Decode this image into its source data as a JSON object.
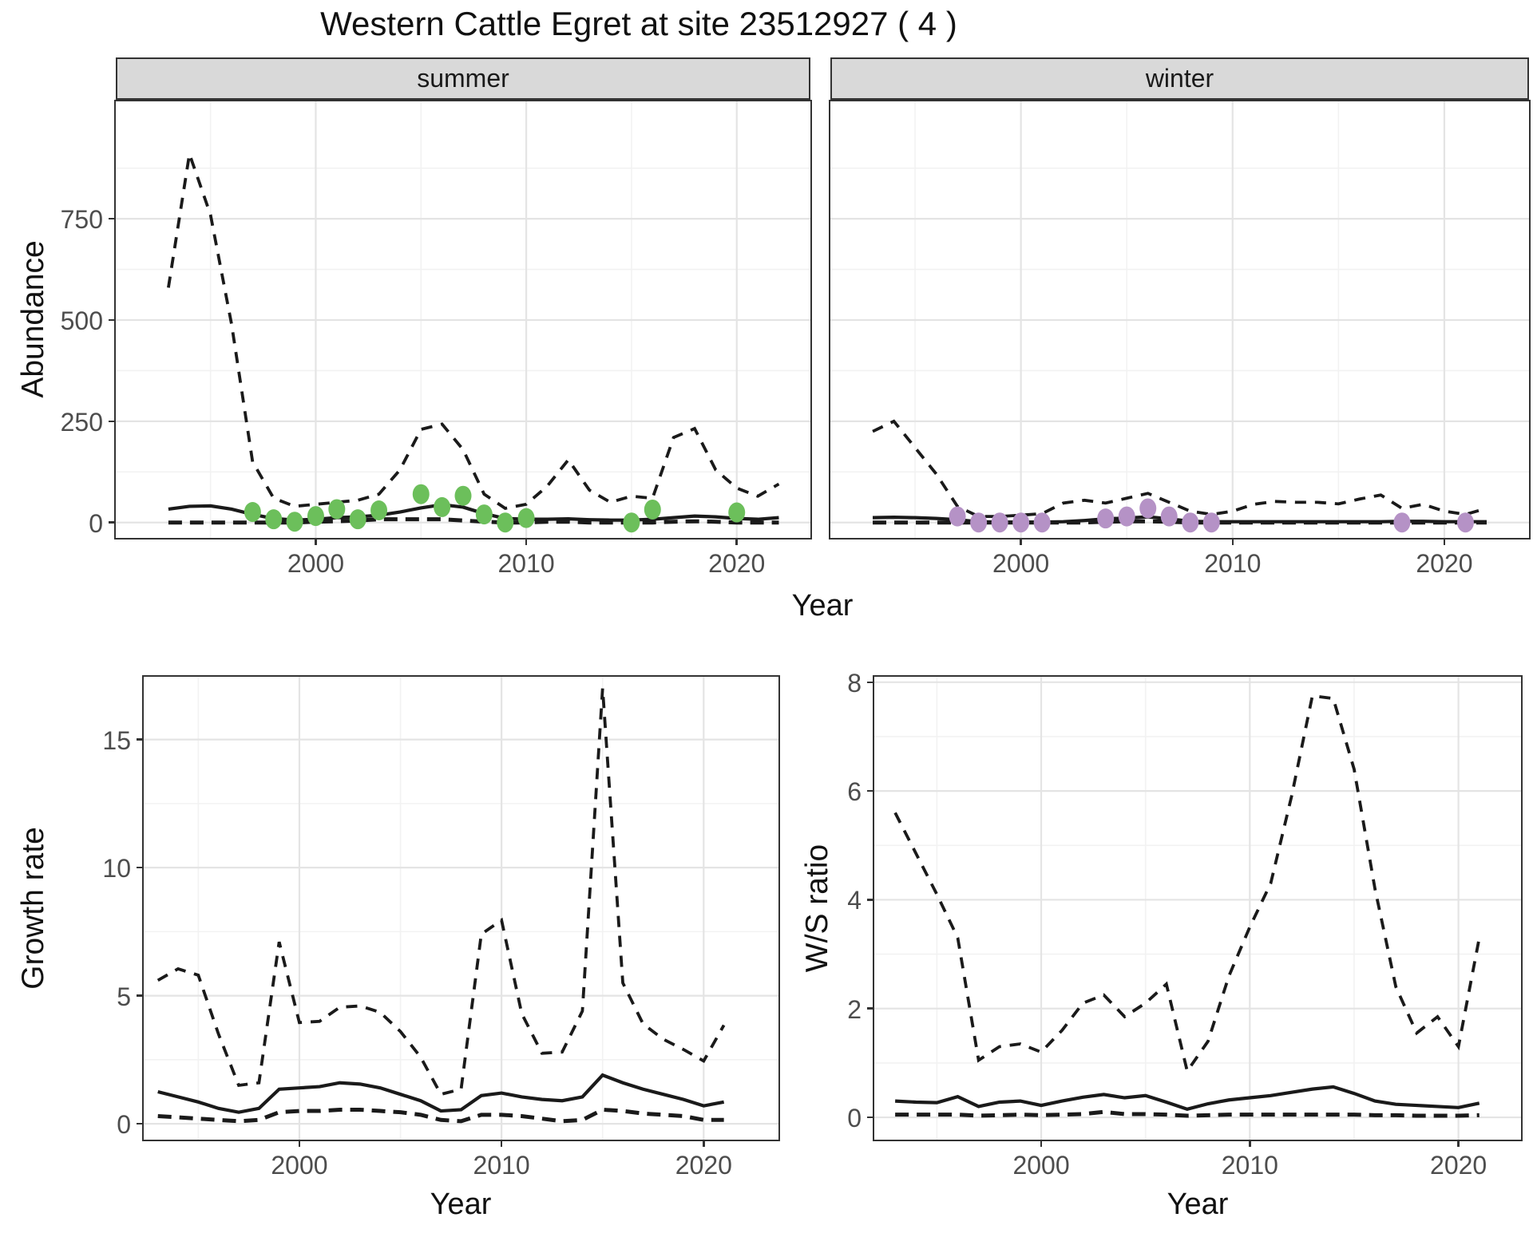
{
  "title": "Western Cattle Egret at site 23512927 ( 4 )",
  "facets": {
    "summer": "summer",
    "winter": "winter"
  },
  "axis_titles": {
    "abundance": "Abundance",
    "year_top": "Year",
    "year_growth": "Year",
    "year_ws": "Year",
    "growth_rate": "Growth rate",
    "ws_ratio": "W/S ratio"
  },
  "colors": {
    "line": "#1a1a1a",
    "summer_points": "#6cbf5b",
    "winter_points": "#b592c6",
    "strip_bg": "#d9d9d9",
    "grid_major": "#e4e4e4",
    "grid_minor": "#f2f2f2",
    "axis_text": "#4d4d4d",
    "panel_border": "#333333"
  },
  "chart_data": [
    {
      "type": "line",
      "id": "abundance-summer",
      "panel_id": "panel-abundance-summer",
      "facet": "summer",
      "xlabel": "Year",
      "ylabel": "Abundance",
      "xlim": [
        1990.5,
        2023.5
      ],
      "ylim": [
        -38,
        1040
      ],
      "xticks": [
        2000,
        2010,
        2020
      ],
      "xminor": [
        1995,
        2005,
        2015
      ],
      "yticks": [
        0,
        250,
        500,
        750
      ],
      "yminor": [
        125,
        375,
        625,
        875
      ],
      "show_y_labels": true,
      "x": [
        1993,
        1994,
        1995,
        1996,
        1997,
        1998,
        1999,
        2000,
        2001,
        2002,
        2003,
        2004,
        2005,
        2006,
        2007,
        2008,
        2009,
        2010,
        2011,
        2012,
        2013,
        2014,
        2015,
        2016,
        2017,
        2018,
        2019,
        2020,
        2021,
        2022
      ],
      "series": [
        {
          "name": "upper-quantile",
          "style": "dashed",
          "values": [
            580,
            910,
            760,
            490,
            150,
            60,
            40,
            45,
            50,
            55,
            70,
            130,
            230,
            243,
            180,
            70,
            35,
            45,
            90,
            155,
            80,
            50,
            65,
            60,
            210,
            232,
            130,
            85,
            65,
            95
          ]
        },
        {
          "name": "median",
          "style": "solid",
          "values": [
            33,
            40,
            41,
            33,
            20,
            10,
            6,
            8,
            12,
            14,
            18,
            26,
            36,
            44,
            38,
            22,
            10,
            8,
            8,
            9,
            7,
            6,
            6,
            8,
            12,
            16,
            14,
            10,
            8,
            12
          ]
        },
        {
          "name": "lower-quantile",
          "style": "dashed-bold",
          "values": [
            0,
            0,
            0,
            0,
            0,
            0,
            0,
            2,
            3,
            5,
            8,
            8,
            8,
            8,
            5,
            2,
            0,
            0,
            2,
            2,
            0,
            0,
            0,
            0,
            2,
            3,
            2,
            0,
            0,
            0
          ]
        }
      ],
      "points": {
        "name": "summer-observations",
        "color_key": "summer_points",
        "x": [
          1997,
          1998,
          1999,
          2000,
          2001,
          2002,
          2003,
          2005,
          2006,
          2007,
          2008,
          2009,
          2010,
          2015,
          2016,
          2020
        ],
        "y": [
          26,
          8,
          2,
          16,
          33,
          8,
          30,
          70,
          38,
          66,
          20,
          0,
          11,
          0,
          32,
          25
        ]
      }
    },
    {
      "type": "line",
      "id": "abundance-winter",
      "panel_id": "panel-abundance-winter",
      "facet": "winter",
      "xlabel": "Year",
      "ylabel": "Abundance",
      "xlim": [
        1991,
        2024
      ],
      "ylim": [
        -38,
        1040
      ],
      "xticks": [
        2000,
        2010,
        2020
      ],
      "xminor": [
        1995,
        2005,
        2015
      ],
      "yticks": [
        0,
        250,
        500,
        750
      ],
      "yminor": [
        125,
        375,
        625,
        875
      ],
      "show_y_labels": false,
      "x": [
        1993,
        1994,
        1995,
        1996,
        1997,
        1998,
        1999,
        2000,
        2001,
        2002,
        2003,
        2004,
        2005,
        2006,
        2007,
        2008,
        2009,
        2010,
        2011,
        2012,
        2013,
        2014,
        2015,
        2016,
        2017,
        2018,
        2019,
        2020,
        2021,
        2022
      ],
      "series": [
        {
          "name": "upper-quantile",
          "style": "dashed",
          "values": [
            225,
            250,
            185,
            120,
            40,
            15,
            15,
            18,
            22,
            48,
            55,
            48,
            60,
            72,
            50,
            28,
            20,
            28,
            45,
            52,
            50,
            50,
            46,
            58,
            68,
            35,
            45,
            28,
            20,
            35
          ]
        },
        {
          "name": "median",
          "style": "solid",
          "values": [
            12,
            13,
            12,
            10,
            7,
            2,
            1,
            1,
            1,
            2,
            5,
            9,
            11,
            14,
            9,
            3,
            2,
            2,
            2,
            2,
            2,
            2,
            2,
            2,
            2,
            3,
            3,
            2,
            2,
            2
          ]
        },
        {
          "name": "lower-quantile",
          "style": "dashed-bold",
          "values": [
            0,
            0,
            0,
            0,
            0,
            0,
            0,
            0,
            0,
            0,
            0,
            2,
            3,
            3,
            2,
            0,
            0,
            0,
            0,
            0,
            0,
            0,
            0,
            0,
            0,
            0,
            0,
            0,
            0,
            0
          ]
        }
      ],
      "points": {
        "name": "winter-observations",
        "color_key": "winter_points",
        "x": [
          1997,
          1998,
          1999,
          2000,
          2001,
          2004,
          2005,
          2006,
          2007,
          2008,
          2009,
          2018,
          2021
        ],
        "y": [
          15,
          0,
          0,
          0,
          0,
          10,
          15,
          35,
          15,
          0,
          0,
          0,
          0
        ]
      }
    },
    {
      "type": "line",
      "id": "growth-rate",
      "panel_id": "panel-growth-rate",
      "xlabel": "Year",
      "ylabel": "Growth rate",
      "xlim": [
        1992.3,
        2023.7
      ],
      "ylim": [
        -0.62,
        17.45
      ],
      "xticks": [
        2000,
        2010,
        2020
      ],
      "xminor": [
        1995,
        2005,
        2015
      ],
      "yticks": [
        0,
        5,
        10,
        15
      ],
      "yminor": [
        2.5,
        7.5,
        12.5
      ],
      "show_y_labels": true,
      "x": [
        1993,
        1994,
        1995,
        1996,
        1997,
        1998,
        1999,
        2000,
        2001,
        2002,
        2003,
        2004,
        2005,
        2006,
        2007,
        2008,
        2009,
        2010,
        2011,
        2012,
        2013,
        2014,
        2015,
        2016,
        2017,
        2018,
        2019,
        2020,
        2021
      ],
      "series": [
        {
          "name": "upper-quantile",
          "style": "dashed",
          "values": [
            5.6,
            6.05,
            5.8,
            3.5,
            1.5,
            1.6,
            7.1,
            3.95,
            4.0,
            4.55,
            4.6,
            4.35,
            3.6,
            2.6,
            1.15,
            1.35,
            7.4,
            7.95,
            4.3,
            2.75,
            2.8,
            4.4,
            17.0,
            5.5,
            3.9,
            3.3,
            2.9,
            2.45,
            3.85
          ]
        },
        {
          "name": "median",
          "style": "solid",
          "values": [
            1.25,
            1.05,
            0.85,
            0.6,
            0.45,
            0.6,
            1.35,
            1.4,
            1.45,
            1.6,
            1.55,
            1.4,
            1.15,
            0.9,
            0.5,
            0.55,
            1.1,
            1.2,
            1.05,
            0.95,
            0.9,
            1.05,
            1.9,
            1.6,
            1.35,
            1.15,
            0.95,
            0.7,
            0.85
          ]
        },
        {
          "name": "lower-quantile",
          "style": "dashed-bold",
          "values": [
            0.3,
            0.25,
            0.2,
            0.15,
            0.1,
            0.15,
            0.45,
            0.5,
            0.5,
            0.55,
            0.55,
            0.5,
            0.45,
            0.35,
            0.15,
            0.1,
            0.35,
            0.35,
            0.3,
            0.2,
            0.1,
            0.15,
            0.55,
            0.5,
            0.4,
            0.35,
            0.3,
            0.15,
            0.15
          ]
        }
      ]
    },
    {
      "type": "line",
      "id": "ws-ratio",
      "panel_id": "panel-ws-ratio",
      "xlabel": "Year",
      "ylabel": "W/S ratio",
      "xlim": [
        1992,
        2023
      ],
      "ylim": [
        -0.41,
        8.1
      ],
      "xticks": [
        2000,
        2010,
        2020
      ],
      "xminor": [
        1995,
        2005,
        2015
      ],
      "yticks": [
        0,
        2,
        4,
        6,
        8
      ],
      "yminor": [
        1,
        3,
        5,
        7
      ],
      "show_y_labels": true,
      "x": [
        1993,
        1994,
        1995,
        1996,
        1997,
        1998,
        1999,
        2000,
        2001,
        2002,
        2003,
        2004,
        2005,
        2006,
        2007,
        2008,
        2009,
        2010,
        2011,
        2012,
        2013,
        2014,
        2015,
        2016,
        2017,
        2018,
        2019,
        2020,
        2021
      ],
      "series": [
        {
          "name": "upper-quantile",
          "style": "dashed",
          "values": [
            5.6,
            4.85,
            4.1,
            3.3,
            1.05,
            1.3,
            1.35,
            1.2,
            1.6,
            2.1,
            2.25,
            1.85,
            2.1,
            2.45,
            0.85,
            1.4,
            2.6,
            3.5,
            4.3,
            5.9,
            7.75,
            7.7,
            6.4,
            4.2,
            2.4,
            1.55,
            1.85,
            1.3,
            3.3
          ]
        },
        {
          "name": "median",
          "style": "solid",
          "values": [
            0.3,
            0.28,
            0.27,
            0.38,
            0.2,
            0.28,
            0.3,
            0.22,
            0.3,
            0.37,
            0.42,
            0.36,
            0.4,
            0.28,
            0.15,
            0.25,
            0.32,
            0.36,
            0.4,
            0.46,
            0.52,
            0.56,
            0.44,
            0.3,
            0.24,
            0.22,
            0.2,
            0.18,
            0.26
          ]
        },
        {
          "name": "lower-quantile",
          "style": "dashed-bold",
          "values": [
            0.05,
            0.05,
            0.05,
            0.05,
            0.03,
            0.04,
            0.05,
            0.04,
            0.05,
            0.06,
            0.1,
            0.06,
            0.06,
            0.05,
            0.03,
            0.04,
            0.05,
            0.05,
            0.05,
            0.05,
            0.05,
            0.05,
            0.05,
            0.04,
            0.04,
            0.03,
            0.03,
            0.03,
            0.04
          ]
        }
      ]
    }
  ]
}
